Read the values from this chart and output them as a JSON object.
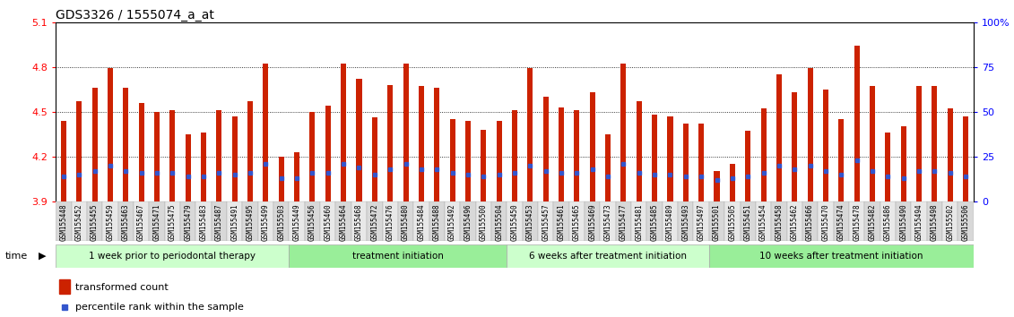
{
  "title": "GDS3326 / 1555074_a_at",
  "samples": [
    "GSM155448",
    "GSM155452",
    "GSM155455",
    "GSM155459",
    "GSM155463",
    "GSM155467",
    "GSM155471",
    "GSM155475",
    "GSM155479",
    "GSM155483",
    "GSM155487",
    "GSM155491",
    "GSM155495",
    "GSM155499",
    "GSM155503",
    "GSM155449",
    "GSM155456",
    "GSM155460",
    "GSM155464",
    "GSM155468",
    "GSM155472",
    "GSM155476",
    "GSM155480",
    "GSM155484",
    "GSM155488",
    "GSM155492",
    "GSM155496",
    "GSM155500",
    "GSM155504",
    "GSM155450",
    "GSM155453",
    "GSM155457",
    "GSM155461",
    "GSM155465",
    "GSM155469",
    "GSM155473",
    "GSM155477",
    "GSM155481",
    "GSM155485",
    "GSM155489",
    "GSM155493",
    "GSM155497",
    "GSM155501",
    "GSM155505",
    "GSM155451",
    "GSM155454",
    "GSM155458",
    "GSM155462",
    "GSM155466",
    "GSM155470",
    "GSM155474",
    "GSM155478",
    "GSM155482",
    "GSM155486",
    "GSM155490",
    "GSM155494",
    "GSM155498",
    "GSM155502",
    "GSM155506"
  ],
  "bar_values": [
    4.44,
    4.57,
    4.66,
    4.79,
    4.66,
    4.56,
    4.5,
    4.51,
    4.35,
    4.36,
    4.51,
    4.47,
    4.57,
    4.82,
    4.2,
    4.23,
    4.5,
    4.54,
    4.82,
    4.72,
    4.46,
    4.68,
    4.82,
    4.67,
    4.66,
    4.45,
    4.44,
    4.38,
    4.44,
    4.51,
    4.79,
    4.6,
    4.53,
    4.51,
    4.63,
    4.35,
    4.82,
    4.57,
    4.48,
    4.47,
    4.42,
    4.42,
    4.1,
    4.15,
    4.37,
    4.52,
    4.75,
    4.63,
    4.79,
    4.65,
    4.45,
    4.94,
    4.67,
    4.36,
    4.4,
    4.67,
    4.67,
    4.52,
    4.47
  ],
  "percentile_values_pct": [
    14,
    15,
    17,
    20,
    17,
    16,
    16,
    16,
    14,
    14,
    16,
    15,
    16,
    21,
    13,
    13,
    16,
    16,
    21,
    19,
    15,
    18,
    21,
    18,
    18,
    16,
    15,
    14,
    15,
    16,
    20,
    17,
    16,
    16,
    18,
    14,
    21,
    16,
    15,
    15,
    14,
    14,
    12,
    13,
    14,
    16,
    20,
    18,
    20,
    17,
    15,
    23,
    17,
    14,
    13,
    17,
    17,
    16,
    14
  ],
  "groups": [
    {
      "label": "1 week prior to periodontal therapy",
      "start": 0,
      "end": 15,
      "color": "#ccffcc"
    },
    {
      "label": "treatment initiation",
      "start": 15,
      "end": 29,
      "color": "#99ee99"
    },
    {
      "label": "6 weeks after treatment initiation",
      "start": 29,
      "end": 42,
      "color": "#ccffcc"
    },
    {
      "label": "10 weeks after treatment initiation",
      "start": 42,
      "end": 59,
      "color": "#99ee99"
    }
  ],
  "ylim_left": [
    3.9,
    5.1
  ],
  "ylim_right": [
    0,
    100
  ],
  "yticks_left": [
    3.9,
    4.2,
    4.5,
    4.8,
    5.1
  ],
  "yticks_right": [
    0,
    25,
    50,
    75,
    100
  ],
  "bar_color": "#cc2200",
  "dot_color": "#3355cc",
  "bar_bottom": 3.9,
  "title_fontsize": 10,
  "tick_fontsize": 5.5,
  "bg_color": "#f0f0f0"
}
